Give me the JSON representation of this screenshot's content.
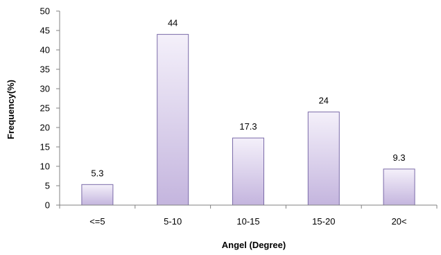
{
  "chart_data": {
    "type": "bar",
    "title": "",
    "xlabel": "Angel (Degree)",
    "ylabel": "Frequency(%)",
    "categories": [
      "<=5",
      "5-10",
      "10-15",
      "15-20",
      "20<"
    ],
    "values": [
      5.3,
      44,
      17.3,
      24,
      9.3
    ],
    "data_labels": [
      "5.3",
      "44",
      "17.3",
      "24",
      "9.3"
    ],
    "ylim": [
      0,
      50
    ],
    "yticks": [
      "0",
      "5",
      "10",
      "15",
      "20",
      "25",
      "30",
      "35",
      "40",
      "45",
      "50"
    ],
    "grid": false,
    "legend": "none",
    "colors": {
      "bar_top": "#f4f0fa",
      "bar_bottom": "#c4b5de",
      "bar_stroke": "#7a6aa8",
      "axis": "#808080"
    }
  }
}
